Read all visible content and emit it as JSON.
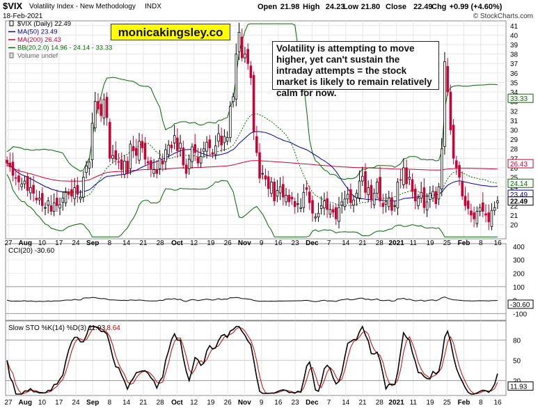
{
  "header": {
    "symbol": "$VIX",
    "name": "Volatility Index - New Methodology",
    "exchange": "INDX",
    "date": "18-Feb-2021",
    "open_label": "Open",
    "open": "21.98",
    "high_label": "High",
    "high": "24.23",
    "low_label": "Low",
    "low": "21.80",
    "close_label": "Close",
    "close": "22.49",
    "chg_label": "Chg",
    "chg": "+0.99 (+4.60%)",
    "copyright": "© StockCharts.com"
  },
  "brand_text": "monicakingsley.co",
  "annotation": "Volatility is attempting to move higher, yet can't sustain the intraday attempts = the stock market is likely to remain relatively calm for now.",
  "legend": {
    "vix": "$VIX (Daily) 22.49",
    "ma50": "MA(50) 23.49",
    "ma200": "MA(200) 26.43",
    "bb": "BB(20,2.0) 14.96 - 24.14 - 33.33",
    "volume": "Volume undef"
  },
  "colors": {
    "up": "#000000",
    "down": "#cc0033",
    "ma50": "#000099",
    "ma200": "#cc0033",
    "bb": "#006600",
    "cci_fill": "#336633",
    "k_line": "#000000",
    "d_line": "#cc0000"
  },
  "chart_data": [
    {
      "type": "candlestick",
      "title": "$VIX (Daily) 22.49",
      "ylim": [
        18.5,
        41.5
      ],
      "y_ticks": [
        20,
        21,
        22,
        23,
        24,
        25,
        26,
        27,
        28,
        29,
        30,
        31,
        32,
        33,
        34,
        35,
        36,
        37,
        38,
        39,
        40,
        41
      ],
      "x_labels": [
        "27",
        "Aug",
        "10",
        "17",
        "24",
        "Sep",
        "8",
        "14",
        "21",
        "28",
        "Oct",
        "12",
        "19",
        "26",
        "Nov",
        "9",
        "16",
        "23",
        "Dec",
        "7",
        "14",
        "21",
        "28",
        "2021",
        "11",
        "19",
        "25",
        "Feb",
        "8",
        "16"
      ],
      "value_tags": [
        "33.33",
        "26.43",
        "24.14",
        "23.49",
        "22.49"
      ],
      "closes": [
        26.5,
        26.1,
        25.2,
        24.9,
        24.5,
        24.3,
        24.6,
        23.6,
        23.9,
        23.3,
        22.6,
        22.8,
        22.0,
        21.8,
        22.5,
        21.4,
        22.3,
        22.0,
        22.1,
        22.8,
        23.4,
        23.2,
        23.0,
        23.9,
        23.2,
        22.9,
        25.0,
        26.2,
        26.6,
        30.7,
        33.0,
        32.2,
        31.5,
        33.2,
        31.3,
        27.0,
        27.3,
        26.9,
        26.6,
        25.8,
        26.7,
        25.4,
        28.5,
        27.8,
        27.3,
        28.8,
        28.1,
        26.9,
        26.5,
        25.9,
        25.8,
        25.4,
        27.0,
        26.4,
        27.9,
        28.4,
        28.1,
        29.4,
        27.8,
        28.6,
        26.3,
        25.4,
        26.9,
        28.2,
        27.6,
        26.5,
        27.2,
        28.0,
        28.7,
        28.1,
        27.4,
        28.3,
        29.6,
        28.4,
        29.3,
        29.2,
        32.5,
        33.5,
        38.0,
        40.3,
        37.6,
        38.0,
        37.0,
        35.5,
        29.8,
        27.6,
        24.9,
        25.4,
        24.8,
        23.8,
        24.5,
        22.5,
        23.6,
        24.0,
        22.9,
        23.1,
        22.4,
        22.7,
        21.9,
        22.2,
        21.8,
        23.4,
        23.7,
        22.3,
        21.2,
        20.8,
        21.2,
        22.0,
        22.5,
        21.6,
        21.6,
        21.3,
        20.6,
        21.8,
        22.4,
        22.7,
        23.2,
        22.3,
        22.6,
        23.3,
        24.6,
        25.1,
        23.4,
        23.9,
        22.6,
        23.3,
        24.5,
        22.5,
        21.9,
        22.4,
        22.8,
        21.5,
        22.0,
        24.5,
        24.7,
        26.0,
        24.3,
        25.0,
        23.5,
        22.5,
        22.8,
        23.4,
        21.8,
        22.4,
        23.3,
        23.5,
        22.2,
        24.0,
        28.0,
        37.2,
        34.0,
        30.0,
        27.0,
        26.0,
        25.0,
        23.0,
        22.0,
        21.7,
        21.0,
        20.6,
        21.4,
        21.8,
        21.4,
        21.0,
        20.3,
        21.5,
        21.8,
        22.5
      ]
    },
    {
      "type": "line",
      "title": "CCI(20) -30.60",
      "ylim": [
        -150,
        420
      ],
      "y_ticks": [
        -100,
        0,
        100,
        200,
        300,
        400
      ],
      "value_tag": "-30.60",
      "fill_threshold": 100
    },
    {
      "type": "line",
      "title": "Slow STO %K(14) %D(3) 11.93, 8.64",
      "k_label": "Slow STO %K(14) %D(3) 11.93,",
      "d_value": "8.64",
      "ylim": [
        0,
        100
      ],
      "y_ticks": [
        20,
        50,
        80
      ],
      "value_tag": "11.93",
      "x_labels": [
        "27",
        "Aug",
        "10",
        "17",
        "24",
        "Sep",
        "8",
        "14",
        "21",
        "28",
        "Oct",
        "12",
        "19",
        "26",
        "Nov",
        "9",
        "16",
        "23",
        "Dec",
        "7",
        "14",
        "21",
        "28",
        "2021",
        "11",
        "19",
        "25",
        "Feb",
        "8",
        "16"
      ]
    }
  ]
}
